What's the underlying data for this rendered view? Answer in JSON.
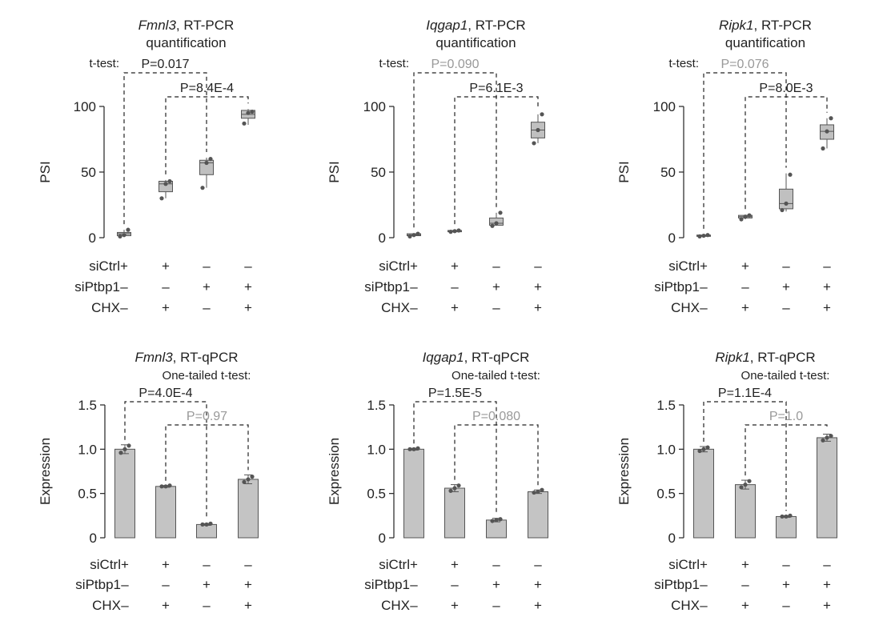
{
  "colors": {
    "axis": "#222222",
    "box_fill": "#c0c0c0",
    "bar_fill": "#c4c4c4",
    "stroke": "#555555",
    "point": "#555555",
    "bracket": "#222222",
    "nonsig": "#999999"
  },
  "condition_labels": [
    "siCtrl",
    "siPtbp1",
    "CHX"
  ],
  "conditions": [
    [
      "+",
      "+",
      "–",
      "–"
    ],
    [
      "–",
      "–",
      "+",
      "+"
    ],
    [
      "–",
      "+",
      "–",
      "+"
    ]
  ],
  "chart_data": [
    {
      "type": "box",
      "gene": "Fmnl3",
      "title_suffix": ", RT-PCR",
      "title_line2": "quantification",
      "test_label": "t-test:",
      "ylabel": "PSI",
      "ylim": [
        0,
        100
      ],
      "yticks": [
        "0",
        "50",
        "100"
      ],
      "ytick_values": [
        0,
        50,
        100
      ],
      "boxes": [
        {
          "min": 1,
          "q1": 1.5,
          "median": 3,
          "q3": 4,
          "max": 6,
          "points": [
            1,
            2,
            6
          ]
        },
        {
          "min": 30,
          "q1": 35,
          "median": 41,
          "q3": 43,
          "max": 44,
          "points": [
            30,
            41,
            43
          ]
        },
        {
          "min": 38,
          "q1": 48,
          "median": 57,
          "q3": 59,
          "max": 61,
          "points": [
            38,
            57,
            60
          ]
        },
        {
          "min": 86,
          "q1": 91,
          "median": 94,
          "q3": 97,
          "max": 98,
          "points": [
            87,
            95,
            96
          ]
        }
      ],
      "comparisons": [
        {
          "from": 1,
          "to": 3,
          "label": "P=0.017",
          "significant": true
        },
        {
          "from": 2,
          "to": 4,
          "label": "P=8.4E-4",
          "significant": true
        }
      ]
    },
    {
      "type": "box",
      "gene": "Iqgap1",
      "title_suffix": ", RT-PCR",
      "title_line2": "quantification",
      "test_label": "t-test:",
      "ylabel": "PSI",
      "ylim": [
        0,
        100
      ],
      "yticks": [
        "0",
        "50",
        "100"
      ],
      "ytick_values": [
        0,
        50,
        100
      ],
      "boxes": [
        {
          "min": 1,
          "q1": 1.5,
          "median": 2,
          "q3": 3,
          "max": 3.5,
          "points": [
            1,
            2,
            3
          ]
        },
        {
          "min": 4,
          "q1": 4.5,
          "median": 5,
          "q3": 5.5,
          "max": 6,
          "points": [
            4.5,
            5,
            5.5
          ]
        },
        {
          "min": 9,
          "q1": 9.5,
          "median": 11,
          "q3": 15,
          "max": 19,
          "points": [
            9,
            11,
            19
          ]
        },
        {
          "min": 72,
          "q1": 76,
          "median": 82,
          "q3": 88,
          "max": 94,
          "points": [
            72,
            82,
            94
          ]
        }
      ],
      "comparisons": [
        {
          "from": 1,
          "to": 3,
          "label": "P=0.090",
          "significant": false
        },
        {
          "from": 2,
          "to": 4,
          "label": "P=6.1E-3",
          "significant": true
        }
      ]
    },
    {
      "type": "box",
      "gene": "Ripk1",
      "title_suffix": ", RT-PCR",
      "title_line2": "quantification",
      "test_label": "t-test:",
      "ylabel": "PSI",
      "ylim": [
        0,
        100
      ],
      "yticks": [
        "0",
        "50",
        "100"
      ],
      "ytick_values": [
        0,
        50,
        100
      ],
      "boxes": [
        {
          "min": 0.5,
          "q1": 1,
          "median": 1.5,
          "q3": 2,
          "max": 2.5,
          "points": [
            1,
            1.5,
            2
          ]
        },
        {
          "min": 14,
          "q1": 15,
          "median": 16,
          "q3": 17,
          "max": 17.5,
          "points": [
            14,
            16,
            17
          ]
        },
        {
          "min": 20,
          "q1": 22,
          "median": 26,
          "q3": 37,
          "max": 49,
          "points": [
            21,
            26,
            48
          ]
        },
        {
          "min": 68,
          "q1": 75,
          "median": 81,
          "q3": 86,
          "max": 91,
          "points": [
            68,
            81,
            91
          ]
        }
      ],
      "comparisons": [
        {
          "from": 1,
          "to": 3,
          "label": "P=0.076",
          "significant": false
        },
        {
          "from": 2,
          "to": 4,
          "label": "P=8.0E-3",
          "significant": true
        }
      ]
    },
    {
      "type": "bar",
      "gene": "Fmnl3",
      "title_suffix": ", RT-qPCR",
      "title_line2": "One-tailed t-test:",
      "ylabel": "Expression",
      "ylim": [
        0,
        1.5
      ],
      "yticks": [
        "0",
        "0.5",
        "1.0",
        "1.5"
      ],
      "ytick_values": [
        0,
        0.5,
        1.0,
        1.5
      ],
      "values": [
        1.0,
        0.58,
        0.15,
        0.66
      ],
      "errors": [
        0.05,
        0.01,
        0.01,
        0.05
      ],
      "points": [
        [
          0.96,
          1.0,
          1.04
        ],
        [
          0.58,
          0.58,
          0.59
        ],
        [
          0.15,
          0.15,
          0.16
        ],
        [
          0.63,
          0.66,
          0.69
        ]
      ],
      "comparisons": [
        {
          "from": 1,
          "to": 3,
          "label": "P=4.0E-4",
          "significant": true
        },
        {
          "from": 2,
          "to": 4,
          "label": "P=0.97",
          "significant": false
        }
      ]
    },
    {
      "type": "bar",
      "gene": "Iqgap1",
      "title_suffix": ", RT-qPCR",
      "title_line2": "One-tailed t-test:",
      "ylabel": "Expression",
      "ylim": [
        0,
        1.5
      ],
      "yticks": [
        "0",
        "0.5",
        "1.0",
        "1.5"
      ],
      "ytick_values": [
        0,
        0.5,
        1.0,
        1.5
      ],
      "values": [
        1.0,
        0.56,
        0.2,
        0.52
      ],
      "errors": [
        0.01,
        0.04,
        0.02,
        0.02
      ],
      "points": [
        [
          1.0,
          1.0,
          1.01
        ],
        [
          0.53,
          0.56,
          0.59
        ],
        [
          0.19,
          0.2,
          0.21
        ],
        [
          0.51,
          0.52,
          0.54
        ]
      ],
      "comparisons": [
        {
          "from": 1,
          "to": 3,
          "label": "P=1.5E-5",
          "significant": true
        },
        {
          "from": 2,
          "to": 4,
          "label": "P=0.080",
          "significant": false
        }
      ]
    },
    {
      "type": "bar",
      "gene": "Ripk1",
      "title_suffix": ", RT-qPCR",
      "title_line2": "One-tailed t-test:",
      "ylabel": "Expression",
      "ylim": [
        0,
        1.5
      ],
      "yticks": [
        "0",
        "0.5",
        "1.0",
        "1.5"
      ],
      "ytick_values": [
        0,
        0.5,
        1.0,
        1.5
      ],
      "values": [
        1.0,
        0.6,
        0.24,
        1.13
      ],
      "errors": [
        0.03,
        0.05,
        0.01,
        0.04
      ],
      "points": [
        [
          0.98,
          1.0,
          1.02
        ],
        [
          0.57,
          0.6,
          0.64
        ],
        [
          0.24,
          0.24,
          0.25
        ],
        [
          1.1,
          1.13,
          1.15
        ]
      ],
      "comparisons": [
        {
          "from": 1,
          "to": 3,
          "label": "P=1.1E-4",
          "significant": true
        },
        {
          "from": 2,
          "to": 4,
          "label": "P=1.0",
          "significant": false
        }
      ]
    }
  ]
}
